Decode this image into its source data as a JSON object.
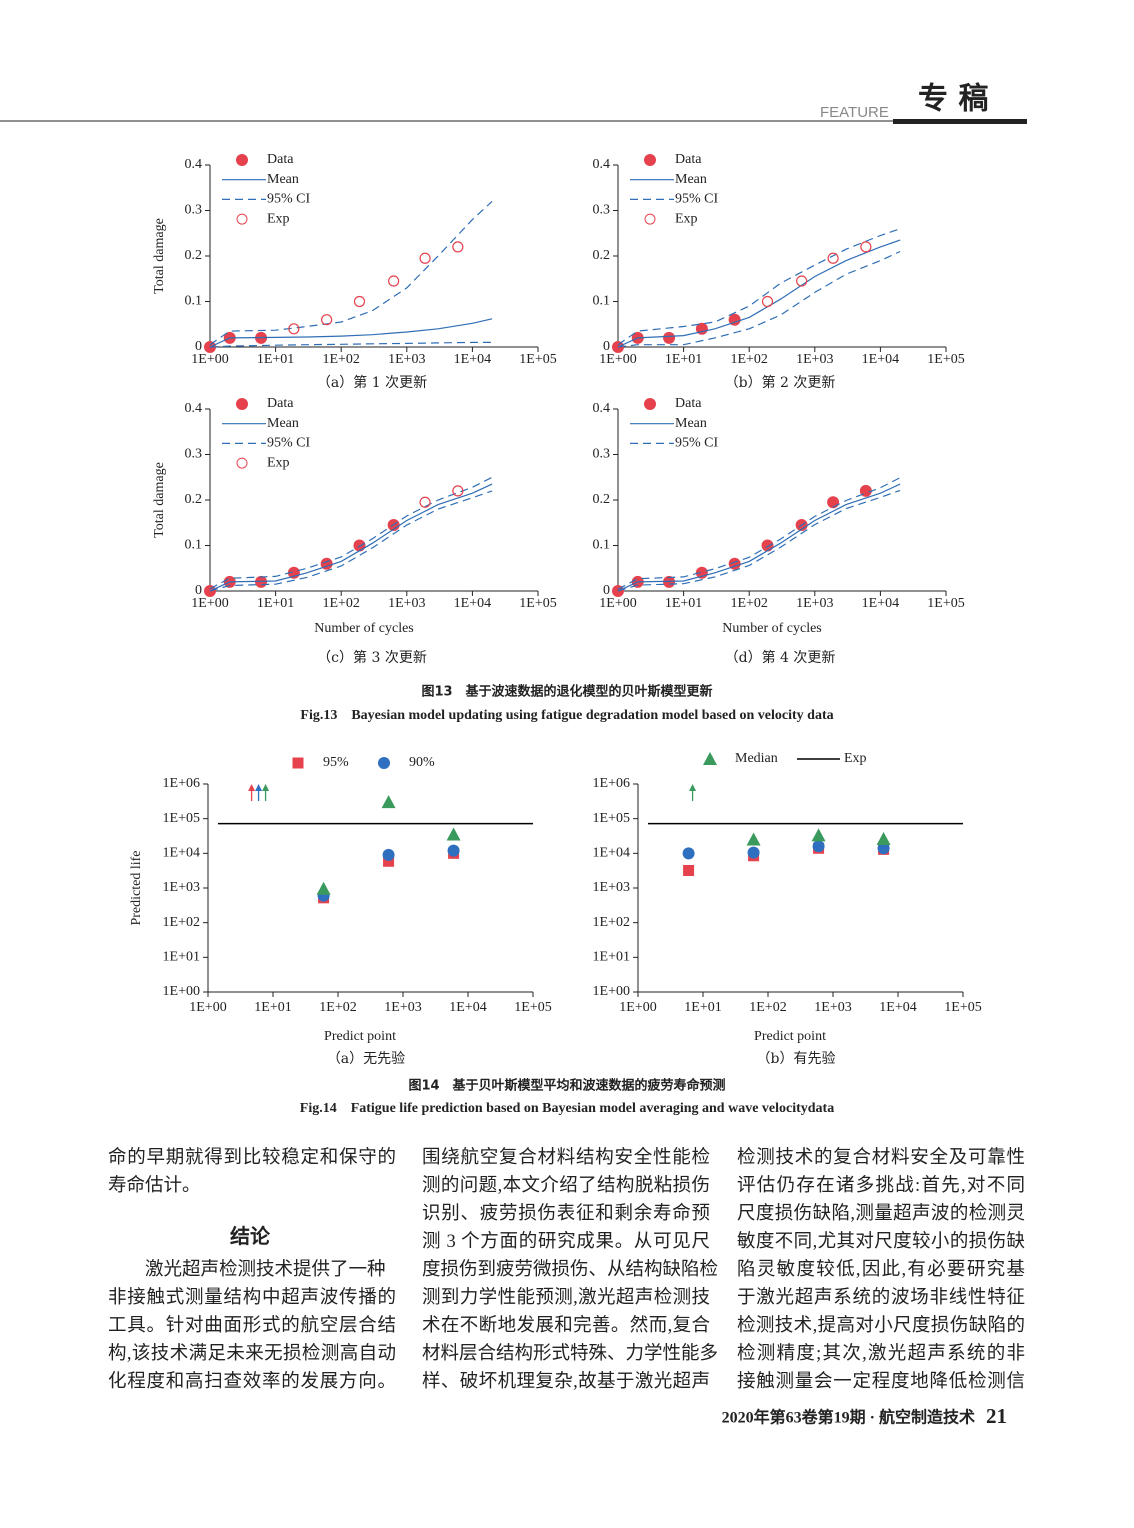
{
  "header": {
    "feature": "FEATURE",
    "title": "专 稿"
  },
  "figure13": {
    "caption_cn": "图13　基于波速数据的退化模型的贝叶斯模型更新",
    "caption_en": "Fig.13　Bayesian model updating using fatigue degradation model based on velocity data",
    "charts": [
      {
        "type": "line",
        "subtitle": "（a）第 1 次更新",
        "ylabel": "Total damage",
        "xscale": "log",
        "xlim": [
          1,
          100000
        ],
        "ylim": [
          0,
          0.4
        ],
        "xticks": [
          {
            "value": 1,
            "label": "1E+00"
          },
          {
            "value": 10,
            "label": "1E+01"
          },
          {
            "value": 100,
            "label": "1E+02"
          },
          {
            "value": 1000,
            "label": "1E+03"
          },
          {
            "value": 10000,
            "label": "1E+04"
          },
          {
            "value": 100000,
            "label": "1E+05"
          }
        ],
        "yticks": [
          0,
          0.1,
          0.2,
          0.3,
          0.4
        ],
        "series": [
          {
            "name": "Data",
            "color": "#e5424d",
            "marker": "dot",
            "x": [
              1,
              2,
              6
            ],
            "values": [
              0,
              0.02,
              0.02
            ]
          },
          {
            "name": "Mean",
            "color": "#2f6eb5",
            "style": "solid",
            "x": [
              1,
              2,
              10,
              30,
              100,
              300,
              1000,
              3000,
              10000,
              20000
            ],
            "values": [
              0,
              0.02,
              0.021,
              0.022,
              0.024,
              0.027,
              0.033,
              0.04,
              0.052,
              0.062
            ]
          },
          {
            "name": "95% CI",
            "color": "#2f6eb5",
            "style": "dashed",
            "x": [
              1,
              2,
              10,
              30,
              100,
              300,
              1000,
              3000,
              10000,
              20000
            ],
            "upper": [
              0.005,
              0.035,
              0.037,
              0.045,
              0.055,
              0.08,
              0.13,
              0.2,
              0.28,
              0.32
            ],
            "lower": [
              0,
              0.002,
              0.004,
              0.005,
              0.006,
              0.007,
              0.008,
              0.009,
              0.01,
              0.01
            ]
          },
          {
            "name": "Exp",
            "color": "#e5424d",
            "marker": "open",
            "x": [
              19,
              60,
              190,
              630,
              1900,
              6000
            ],
            "values": [
              0.04,
              0.06,
              0.1,
              0.145,
              0.195,
              0.22
            ]
          }
        ]
      },
      {
        "type": "line",
        "subtitle": "（b）第 2 次更新",
        "xscale": "log",
        "xlim": [
          1,
          100000
        ],
        "ylim": [
          0,
          0.4
        ],
        "xticks": [
          {
            "value": 1,
            "label": "1E+00"
          },
          {
            "value": 10,
            "label": "1E+01"
          },
          {
            "value": 100,
            "label": "1E+02"
          },
          {
            "value": 1000,
            "label": "1E+03"
          },
          {
            "value": 10000,
            "label": "1E+04"
          },
          {
            "value": 100000,
            "label": "1E+05"
          }
        ],
        "yticks": [
          0,
          0.1,
          0.2,
          0.3,
          0.4
        ],
        "series": [
          {
            "name": "Data",
            "color": "#e5424d",
            "marker": "dot",
            "x": [
              1,
              2,
              6,
              19,
              60
            ],
            "values": [
              0,
              0.02,
              0.02,
              0.04,
              0.06
            ]
          },
          {
            "name": "Mean",
            "color": "#2f6eb5",
            "style": "solid",
            "x": [
              1,
              2,
              10,
              30,
              100,
              300,
              1000,
              3000,
              10000,
              20000
            ],
            "values": [
              0,
              0.02,
              0.025,
              0.04,
              0.065,
              0.105,
              0.155,
              0.19,
              0.22,
              0.235
            ]
          },
          {
            "name": "95% CI",
            "color": "#2f6eb5",
            "style": "dashed",
            "x": [
              1,
              2,
              10,
              30,
              100,
              300,
              1000,
              3000,
              10000,
              20000
            ],
            "upper": [
              0.005,
              0.035,
              0.045,
              0.055,
              0.09,
              0.14,
              0.18,
              0.215,
              0.245,
              0.26
            ],
            "lower": [
              0,
              0.005,
              0.005,
              0.02,
              0.04,
              0.07,
              0.12,
              0.16,
              0.19,
              0.21
            ]
          },
          {
            "name": "Exp",
            "color": "#e5424d",
            "marker": "open",
            "x": [
              190,
              630,
              1900,
              6000
            ],
            "values": [
              0.1,
              0.145,
              0.195,
              0.22
            ]
          }
        ]
      },
      {
        "type": "line",
        "subtitle": "（c）第 3 次更新",
        "ylabel": "Total damage",
        "xlabel": "Number of cycles",
        "xscale": "log",
        "xlim": [
          1,
          100000
        ],
        "ylim": [
          0,
          0.4
        ],
        "xticks": [
          {
            "value": 1,
            "label": "1E+00"
          },
          {
            "value": 10,
            "label": "1E+01"
          },
          {
            "value": 100,
            "label": "1E+02"
          },
          {
            "value": 1000,
            "label": "1E+03"
          },
          {
            "value": 10000,
            "label": "1E+04"
          },
          {
            "value": 100000,
            "label": "1E+05"
          }
        ],
        "yticks": [
          0,
          0.1,
          0.2,
          0.3,
          0.4
        ],
        "series": [
          {
            "name": "Data",
            "color": "#e5424d",
            "marker": "dot",
            "x": [
              1,
              2,
              6,
              19,
              60,
              190,
              630
            ],
            "values": [
              0,
              0.02,
              0.02,
              0.04,
              0.06,
              0.1,
              0.145
            ]
          },
          {
            "name": "Mean",
            "color": "#2f6eb5",
            "style": "solid",
            "x": [
              1,
              2,
              10,
              30,
              100,
              300,
              1000,
              3000,
              10000,
              20000
            ],
            "values": [
              0,
              0.02,
              0.022,
              0.04,
              0.065,
              0.105,
              0.155,
              0.19,
              0.215,
              0.235
            ]
          },
          {
            "name": "95% CI",
            "color": "#2f6eb5",
            "style": "dashed",
            "x": [
              1,
              2,
              10,
              30,
              100,
              300,
              1000,
              3000,
              10000,
              20000
            ],
            "upper": [
              0.005,
              0.028,
              0.032,
              0.05,
              0.075,
              0.115,
              0.165,
              0.2,
              0.228,
              0.25
            ],
            "lower": [
              0,
              0.012,
              0.015,
              0.03,
              0.055,
              0.095,
              0.145,
              0.18,
              0.205,
              0.22
            ]
          },
          {
            "name": "Exp",
            "color": "#e5424d",
            "marker": "open",
            "x": [
              1900,
              6000
            ],
            "values": [
              0.195,
              0.22
            ]
          }
        ]
      },
      {
        "type": "line",
        "subtitle": "（d）第 4 次更新",
        "xlabel": "Number of cycles",
        "xscale": "log",
        "xlim": [
          1,
          100000
        ],
        "ylim": [
          0,
          0.4
        ],
        "xticks": [
          {
            "value": 1,
            "label": "1E+00"
          },
          {
            "value": 10,
            "label": "1E+01"
          },
          {
            "value": 100,
            "label": "1E+02"
          },
          {
            "value": 1000,
            "label": "1E+03"
          },
          {
            "value": 10000,
            "label": "1E+04"
          },
          {
            "value": 100000,
            "label": "1E+05"
          }
        ],
        "yticks": [
          0,
          0.1,
          0.2,
          0.3,
          0.4
        ],
        "series": [
          {
            "name": "Data",
            "color": "#e5424d",
            "marker": "dot",
            "x": [
              1,
              2,
              6,
              19,
              60,
              190,
              630,
              1900,
              6000
            ],
            "values": [
              0,
              0.02,
              0.02,
              0.04,
              0.06,
              0.1,
              0.145,
              0.195,
              0.22
            ]
          },
          {
            "name": "Mean",
            "color": "#2f6eb5",
            "style": "solid",
            "x": [
              1,
              2,
              10,
              30,
              100,
              300,
              1000,
              3000,
              10000,
              20000
            ],
            "values": [
              0,
              0.02,
              0.022,
              0.04,
              0.065,
              0.105,
              0.155,
              0.19,
              0.215,
              0.235
            ]
          },
          {
            "name": "95% CI",
            "color": "#2f6eb5",
            "style": "dashed",
            "x": [
              1,
              2,
              10,
              30,
              100,
              300,
              1000,
              3000,
              10000,
              20000
            ],
            "upper": [
              0.004,
              0.027,
              0.031,
              0.049,
              0.074,
              0.114,
              0.164,
              0.199,
              0.227,
              0.249
            ],
            "lower": [
              0,
              0.013,
              0.016,
              0.031,
              0.056,
              0.096,
              0.146,
              0.181,
              0.206,
              0.221
            ]
          }
        ]
      }
    ]
  },
  "figure14": {
    "caption_cn": "图14　基于贝叶斯模型平均和波速数据的疲劳寿命预测",
    "caption_en": "Fig.14　Fatigue life prediction based on Bayesian model averaging and wave velocitydata",
    "x": [
      6,
      60,
      600,
      6000
    ],
    "charts": [
      {
        "type": "scatter",
        "subtitle": "（a）无先验",
        "ylabel": "Predicted life",
        "xlabel": "Predict point",
        "xscale": "log",
        "yscale": "log",
        "xlim": [
          1,
          100000
        ],
        "ylim": [
          1,
          1000000
        ],
        "xticks": [
          {
            "value": 1,
            "label": "1E+00"
          },
          {
            "value": 10,
            "label": "1E+01"
          },
          {
            "value": 100,
            "label": "1E+02"
          },
          {
            "value": 1000,
            "label": "1E+03"
          },
          {
            "value": 10000,
            "label": "1E+04"
          },
          {
            "value": 100000,
            "label": "1E+05"
          }
        ],
        "yticks": [
          {
            "value": 1,
            "label": "1E+00"
          },
          {
            "value": 10,
            "label": "1E+01"
          },
          {
            "value": 100,
            "label": "1E+02"
          },
          {
            "value": 1000,
            "label": "1E+03"
          },
          {
            "value": 10000,
            "label": "1E+04"
          },
          {
            "value": 100000,
            "label": "1E+05"
          },
          {
            "value": 1000000,
            "label": "1E+06"
          }
        ]
      },
      {
        "type": "scatter",
        "subtitle": "（b）有先验",
        "xlabel": "Predict point",
        "xscale": "log",
        "yscale": "log",
        "xlim": [
          1,
          100000
        ],
        "ylim": [
          1,
          1000000
        ],
        "xticks": [
          {
            "value": 1,
            "label": "1E+00"
          },
          {
            "value": 10,
            "label": "1E+01"
          },
          {
            "value": 100,
            "label": "1E+02"
          },
          {
            "value": 1000,
            "label": "1E+03"
          },
          {
            "value": 10000,
            "label": "1E+04"
          },
          {
            "value": 100000,
            "label": "1E+05"
          }
        ],
        "yticks": [
          {
            "value": 1,
            "label": "1E+00"
          },
          {
            "value": 10,
            "label": "1E+01"
          },
          {
            "value": 100,
            "label": "1E+02"
          },
          {
            "value": 1000,
            "label": "1E+03"
          },
          {
            "value": 10000,
            "label": "1E+04"
          },
          {
            "value": 100000,
            "label": "1E+05"
          },
          {
            "value": 1000000,
            "label": "1E+06"
          }
        ]
      }
    ],
    "series": [
      {
        "name": "95%",
        "color": "#e5424d",
        "marker": "square",
        "values": [
          [
            550000,
            520,
            5900,
            10000
          ],
          [
            3200,
            8500,
            14000,
            13000
          ]
        ],
        "markers": [
          [
            "arrow",
            "square",
            "square",
            "square"
          ],
          [
            "square",
            "square",
            "square",
            "square"
          ]
        ]
      },
      {
        "name": "90%",
        "color": "#2f6fc0",
        "marker": "circle",
        "values": [
          [
            550000,
            600,
            9000,
            12000
          ],
          [
            10000,
            10500,
            16000,
            14000
          ]
        ],
        "markers": [
          [
            "arrow",
            "circle",
            "circle",
            "circle"
          ],
          [
            "circle",
            "circle",
            "circle",
            "circle"
          ]
        ]
      },
      {
        "name": "Median",
        "color": "#3a9a5d",
        "marker": "triangle",
        "values": [
          [
            550000,
            950,
            300000,
            35000
          ],
          [
            550000,
            25000,
            33000,
            26000
          ]
        ],
        "markers": [
          [
            "arrow",
            "triangle",
            "triangle",
            "triangle"
          ],
          [
            "arrow",
            "triangle",
            "triangle",
            "triangle"
          ]
        ]
      },
      {
        "name": "Exp",
        "color": "#000000",
        "marker": "line",
        "values": [
          72000,
          72000
        ]
      }
    ]
  },
  "body": {
    "columns": [
      {
        "lines": [
          "命的早期就得到比较稳定和保守的",
          "寿命估计。"
        ],
        "heading": "结论",
        "paragraph": [
          "激光超声检测技术提供了一种",
          "非接触式测量结构中超声波传播的",
          "工具。针对曲面形式的航空层合结",
          "构,该技术满足未来无损检测高自动",
          "化程度和高扫查效率的发展方向。"
        ]
      },
      {
        "lines": [
          "围绕航空复合材料结构安全性能检",
          "测的问题,本文介绍了结构脱粘损伤",
          "识别、疲劳损伤表征和剩余寿命预",
          "测 3 个方面的研究成果。从可见尺",
          "度损伤到疲劳微损伤、从结构缺陷检",
          "测到力学性能预测,激光超声检测技",
          "术在不断地发展和完善。然而,复合",
          "材料层合结构形式特殊、力学性能多",
          "样、破坏机理复杂,故基于激光超声"
        ]
      },
      {
        "lines": [
          "检测技术的复合材料安全及可靠性",
          "评估仍存在诸多挑战:首先,对不同",
          "尺度损伤缺陷,测量超声波的检测灵",
          "敏度不同,尤其对尺度较小的损伤缺",
          "陷灵敏度较低,因此,有必要研究基",
          "于激光超声系统的波场非线性特征",
          "检测技术,提高对小尺度损伤缺陷的",
          "检测精度;其次,激光超声系统的非",
          "接触测量会一定程度地降低检测信"
        ]
      }
    ]
  },
  "footer": {
    "issue": "2020年第63卷第19期 · 航空制造技术",
    "page": "21"
  }
}
